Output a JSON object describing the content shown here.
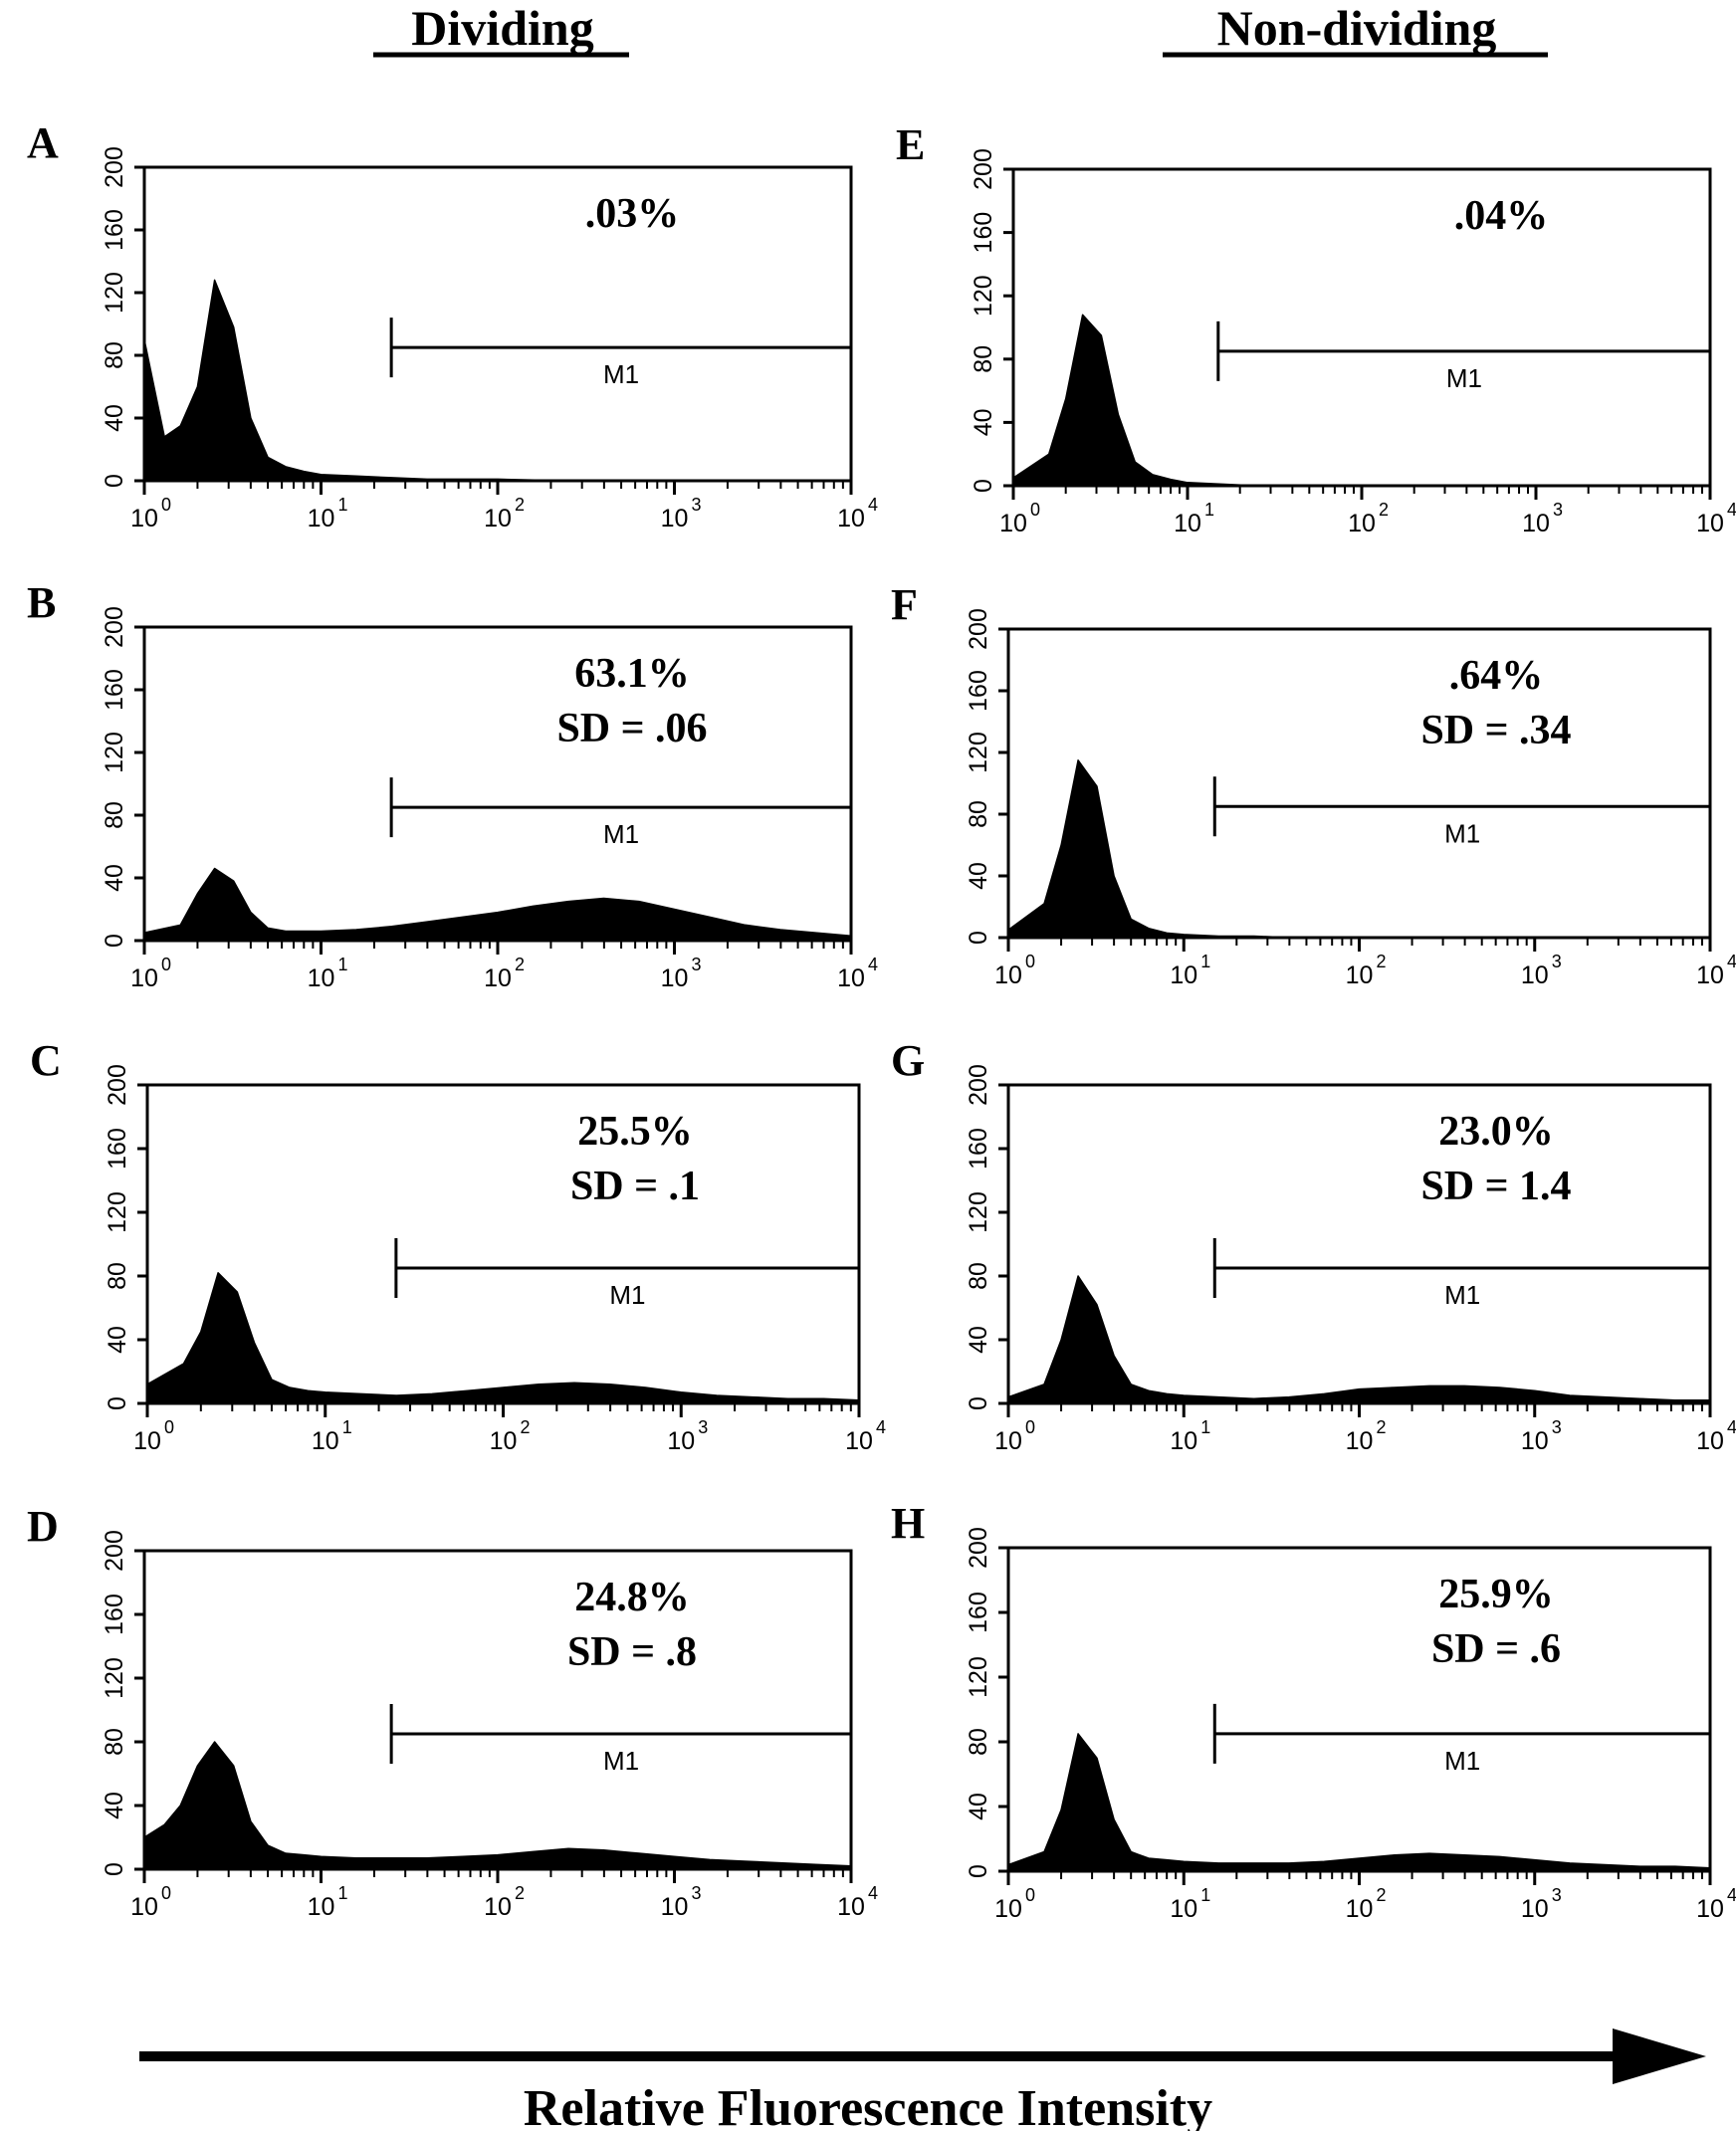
{
  "headers": {
    "left": "Dividing",
    "right": "Non-dividing"
  },
  "x_axis_label": "Relative Fluorescence Intensity",
  "chart_data": [
    {
      "type": "area",
      "panel": "A",
      "column": "Dividing",
      "x_scale": "log",
      "xlim": [
        1,
        10000
      ],
      "ylim": [
        0,
        200
      ],
      "y_ticks": [
        0,
        40,
        80,
        120,
        160,
        200
      ],
      "x_ticks": [
        1,
        10,
        100,
        1000,
        10000
      ],
      "marker": {
        "label": "M1",
        "range": [
          25,
          10000
        ],
        "y": 85
      },
      "annotation": [
        ".03%"
      ],
      "x": [
        1.0,
        1.3,
        1.6,
        2.0,
        2.5,
        3.2,
        4.0,
        5.0,
        6.3,
        8.0,
        10.0,
        15.8,
        25.1,
        39.8,
        63.1,
        100.0,
        251.2,
        1000.0,
        10000.0
      ],
      "y": [
        90,
        28,
        35,
        60,
        128,
        98,
        40,
        15,
        9,
        6,
        4,
        3,
        2,
        1,
        1,
        1,
        0,
        0,
        0
      ]
    },
    {
      "type": "area",
      "panel": "B",
      "column": "Dividing",
      "x_scale": "log",
      "xlim": [
        1,
        10000
      ],
      "ylim": [
        0,
        200
      ],
      "y_ticks": [
        0,
        40,
        80,
        120,
        160,
        200
      ],
      "x_ticks": [
        1,
        10,
        100,
        1000,
        10000
      ],
      "marker": {
        "label": "M1",
        "range": [
          25,
          10000
        ],
        "y": 85
      },
      "annotation": [
        "63.1%",
        "SD = .06"
      ],
      "x": [
        1.0,
        1.6,
        2.0,
        2.5,
        3.2,
        4.0,
        5.0,
        6.3,
        10.0,
        15.8,
        25.1,
        39.8,
        63.1,
        100.0,
        158.5,
        251.2,
        398.1,
        631.0,
        1000.0,
        1584.9,
        2511.9,
        3981.1,
        6309.6,
        10000.0
      ],
      "y": [
        5,
        10,
        30,
        46,
        38,
        18,
        8,
        6,
        6,
        7,
        9,
        12,
        15,
        18,
        22,
        25,
        27,
        25,
        20,
        15,
        10,
        7,
        5,
        3
      ]
    },
    {
      "type": "area",
      "panel": "C",
      "column": "Dividing",
      "x_scale": "log",
      "xlim": [
        1,
        10000
      ],
      "ylim": [
        0,
        200
      ],
      "y_ticks": [
        0,
        40,
        80,
        120,
        160,
        200
      ],
      "x_ticks": [
        1,
        10,
        100,
        1000,
        10000
      ],
      "marker": {
        "label": "M1",
        "range": [
          25,
          10000
        ],
        "y": 85
      },
      "annotation": [
        "25.5%",
        "SD = .1"
      ],
      "x": [
        1.0,
        1.6,
        2.0,
        2.5,
        3.2,
        4.0,
        5.0,
        6.3,
        8.0,
        10.0,
        15.8,
        25.1,
        39.8,
        63.1,
        100.0,
        158.5,
        251.2,
        398.1,
        631.0,
        1000.0,
        1584.9,
        2511.9,
        3981.1,
        6309.6,
        10000.0
      ],
      "y": [
        12,
        25,
        45,
        82,
        70,
        38,
        15,
        10,
        8,
        7,
        6,
        5,
        6,
        8,
        10,
        12,
        13,
        12,
        10,
        7,
        5,
        4,
        3,
        3,
        2
      ]
    },
    {
      "type": "area",
      "panel": "D",
      "column": "Dividing",
      "x_scale": "log",
      "xlim": [
        1,
        10000
      ],
      "ylim": [
        0,
        200
      ],
      "y_ticks": [
        0,
        40,
        80,
        120,
        160,
        200
      ],
      "x_ticks": [
        1,
        10,
        100,
        1000,
        10000
      ],
      "marker": {
        "label": "M1",
        "range": [
          25,
          10000
        ],
        "y": 85
      },
      "annotation": [
        "24.8%",
        "SD = .8"
      ],
      "x": [
        1.0,
        1.3,
        1.6,
        2.0,
        2.5,
        3.2,
        4.0,
        5.0,
        6.3,
        8.0,
        10.0,
        15.8,
        25.1,
        39.8,
        63.1,
        100.0,
        158.5,
        251.2,
        398.1,
        631.0,
        1000.0,
        1584.9,
        2511.9,
        3981.1,
        6309.6,
        10000.0
      ],
      "y": [
        20,
        28,
        40,
        65,
        80,
        65,
        30,
        15,
        10,
        9,
        8,
        7,
        7,
        7,
        8,
        9,
        11,
        13,
        12,
        10,
        8,
        6,
        5,
        4,
        3,
        2
      ]
    },
    {
      "type": "area",
      "panel": "E",
      "column": "Non-dividing",
      "x_scale": "log",
      "xlim": [
        1,
        10000
      ],
      "ylim": [
        0,
        200
      ],
      "y_ticks": [
        0,
        40,
        80,
        120,
        160,
        200
      ],
      "x_ticks": [
        1,
        10,
        100,
        1000,
        10000
      ],
      "marker": {
        "label": "M1",
        "range": [
          15,
          10000
        ],
        "y": 85
      },
      "annotation": [
        ".04%"
      ],
      "x": [
        1.0,
        1.6,
        2.0,
        2.5,
        3.2,
        4.0,
        5.0,
        6.3,
        8.0,
        10.0,
        15.8,
        25.1,
        39.8,
        63.1,
        100.0,
        1000.0,
        10000.0
      ],
      "y": [
        5,
        20,
        55,
        108,
        95,
        45,
        15,
        7,
        4,
        2,
        1,
        0,
        0,
        0,
        0,
        0,
        0
      ]
    },
    {
      "type": "area",
      "panel": "F",
      "column": "Non-dividing",
      "x_scale": "log",
      "xlim": [
        1,
        10000
      ],
      "ylim": [
        0,
        200
      ],
      "y_ticks": [
        0,
        40,
        80,
        120,
        160,
        200
      ],
      "x_ticks": [
        1,
        10,
        100,
        1000,
        10000
      ],
      "marker": {
        "label": "M1",
        "range": [
          15,
          10000
        ],
        "y": 85
      },
      "annotation": [
        ".64%",
        "SD = .34"
      ],
      "x": [
        1.0,
        1.6,
        2.0,
        2.5,
        3.2,
        4.0,
        5.0,
        6.3,
        8.0,
        10.0,
        15.8,
        25.1,
        39.8,
        63.1,
        100.0,
        1000.0,
        10000.0
      ],
      "y": [
        5,
        22,
        60,
        115,
        98,
        40,
        12,
        6,
        3,
        2,
        1,
        1,
        0,
        0,
        0,
        0,
        0
      ]
    },
    {
      "type": "area",
      "panel": "G",
      "column": "Non-dividing",
      "x_scale": "log",
      "xlim": [
        1,
        10000
      ],
      "ylim": [
        0,
        200
      ],
      "y_ticks": [
        0,
        40,
        80,
        120,
        160,
        200
      ],
      "x_ticks": [
        1,
        10,
        100,
        1000,
        10000
      ],
      "marker": {
        "label": "M1",
        "range": [
          15,
          10000
        ],
        "y": 85
      },
      "annotation": [
        "23.0%",
        "SD = 1.4"
      ],
      "x": [
        1.0,
        1.6,
        2.0,
        2.5,
        3.2,
        4.0,
        5.0,
        6.3,
        8.0,
        10.0,
        15.8,
        25.1,
        39.8,
        63.1,
        100.0,
        158.5,
        251.2,
        398.1,
        631.0,
        1000.0,
        1584.9,
        2511.9,
        3981.1,
        6309.6,
        10000.0
      ],
      "y": [
        4,
        12,
        40,
        80,
        62,
        30,
        12,
        8,
        6,
        5,
        4,
        3,
        4,
        6,
        9,
        10,
        11,
        11,
        10,
        8,
        5,
        4,
        3,
        2,
        2
      ]
    },
    {
      "type": "area",
      "panel": "H",
      "column": "Non-dividing",
      "x_scale": "log",
      "xlim": [
        1,
        10000
      ],
      "ylim": [
        0,
        200
      ],
      "y_ticks": [
        0,
        40,
        80,
        120,
        160,
        200
      ],
      "x_ticks": [
        1,
        10,
        100,
        1000,
        10000
      ],
      "marker": {
        "label": "M1",
        "range": [
          15,
          10000
        ],
        "y": 85
      },
      "annotation": [
        "25.9%",
        "SD = .6"
      ],
      "x": [
        1.0,
        1.6,
        2.0,
        2.5,
        3.2,
        4.0,
        5.0,
        6.3,
        8.0,
        10.0,
        15.8,
        25.1,
        39.8,
        63.1,
        100.0,
        158.5,
        251.2,
        398.1,
        631.0,
        1000.0,
        1584.9,
        2511.9,
        3981.1,
        6309.6,
        10000.0
      ],
      "y": [
        4,
        12,
        38,
        85,
        70,
        32,
        12,
        8,
        7,
        6,
        5,
        5,
        5,
        6,
        8,
        10,
        11,
        10,
        9,
        7,
        5,
        4,
        3,
        3,
        2
      ]
    }
  ]
}
